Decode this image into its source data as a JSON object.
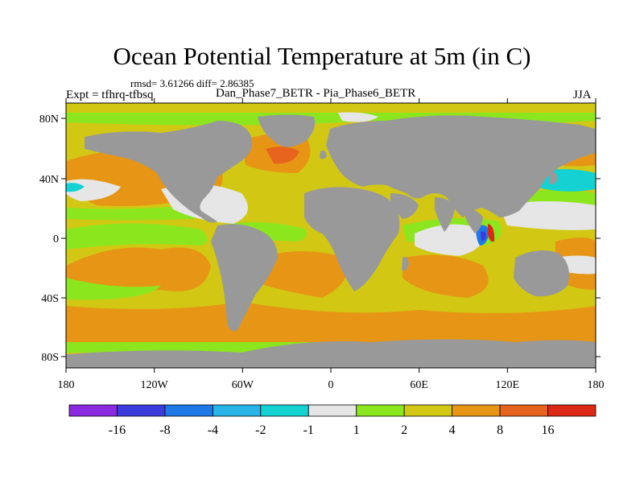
{
  "title": "Ocean Potential Temperature at 5m (in C)",
  "stats": "rmsd= 3.61266 diff= 2.86385",
  "expt": "Expt = tfhrq-tfbsq",
  "cases": "Dan_Phase7_BETR - Pia_Phase6_BETR",
  "season": "JJA",
  "lat_ticks": [
    "80N",
    "40N",
    "0",
    "40S",
    "80S"
  ],
  "lon_ticks": [
    "180",
    "120W",
    "60W",
    "0",
    "60E",
    "120E",
    "180"
  ],
  "colorbar": {
    "labels": [
      "-16",
      "-8",
      "-4",
      "-2",
      "-1",
      "1",
      "2",
      "4",
      "8",
      "16"
    ],
    "colors": [
      "#8a2be2",
      "#3c3cdc",
      "#1e78e6",
      "#28b4e6",
      "#14d2d2",
      "#e6e6e6",
      "#8ce61e",
      "#d2c814",
      "#e69614",
      "#e6641e",
      "#dc2814"
    ]
  },
  "colors": {
    "land": "#999999",
    "ocean_background": "#d2c814",
    "border": "#000000"
  }
}
